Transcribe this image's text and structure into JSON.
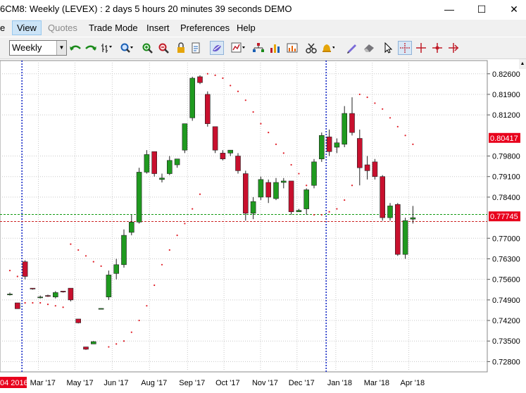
{
  "window": {
    "title": "6CM8: Weekly (LEVEX) : 2 days 5 hours 20 minutes 39 seconds DEMO",
    "minimize": "—",
    "maximize": "☐",
    "close": "✕"
  },
  "menu": {
    "items": [
      {
        "label": "e",
        "state": "normal"
      },
      {
        "label": "View",
        "state": "active"
      },
      {
        "label": "Quotes",
        "state": "disabled"
      },
      {
        "label": "Trade Mode",
        "state": "normal"
      },
      {
        "label": "Insert",
        "state": "normal"
      },
      {
        "label": "Preferences",
        "state": "normal"
      },
      {
        "label": "Help",
        "state": "normal"
      }
    ]
  },
  "toolbar": {
    "timeframe": "Weekly",
    "icons": [
      "undo-icon",
      "redo-icon",
      "bar-style-icon",
      "zoom-icon",
      "zoom-in-icon",
      "zoom-out-icon",
      "lock-icon",
      "page-icon",
      "draw-mode-icon",
      "indicator-icon",
      "tree-icon",
      "bars-icon",
      "scissors-icon",
      "bell-icon",
      "pencil-icon",
      "eraser-icon",
      "cursor-icon",
      "crosshair-icon",
      "crosshair-red-icon",
      "crosshair-dot-icon",
      "crosshair-arrow-icon"
    ]
  },
  "chart_data": {
    "type": "candlestick",
    "ylim": [
      0.7245,
      0.8305
    ],
    "yticks": [
      0.826,
      0.819,
      0.812,
      0.798,
      0.791,
      0.784,
      0.77,
      0.763,
      0.756,
      0.749,
      0.742,
      0.735,
      0.728
    ],
    "ytick_labels": [
      "0.82600",
      "0.81900",
      "0.81200",
      "0.79800",
      "0.79100",
      "0.78400",
      "0.77000",
      "0.76300",
      "0.75600",
      "0.74900",
      "0.74200",
      "0.73500",
      "0.72800"
    ],
    "price_tags": [
      {
        "label": "0.80417",
        "value": 0.80417,
        "color": "#e8001c"
      },
      {
        "label": "0.77745",
        "value": 0.77745,
        "color": "#e8001c"
      }
    ],
    "hlines": [
      {
        "value": 0.7781,
        "color": "#119911",
        "style": "dashed"
      },
      {
        "value": 0.7757,
        "color": "#cc2222",
        "style": "dashed"
      }
    ],
    "month_labels": [
      {
        "label": "04 2016",
        "idx": 0.3,
        "highlight": true
      },
      {
        "label": "Mar '17",
        "idx": 4.5
      },
      {
        "label": "May '17",
        "idx": 9.3
      },
      {
        "label": "Jun '17",
        "idx": 14.2
      },
      {
        "label": "Aug '17",
        "idx": 19.1
      },
      {
        "label": "Sep '17",
        "idx": 24.1
      },
      {
        "label": "Oct '17",
        "idx": 28.9
      },
      {
        "label": "Nov '17",
        "idx": 33.7
      },
      {
        "label": "Dec '17",
        "idx": 38.5
      },
      {
        "label": "Jan '18",
        "idx": 43.6
      },
      {
        "label": "Mar '18",
        "idx": 48.4
      },
      {
        "label": "Apr '18",
        "idx": 53.2
      }
    ],
    "vlines_blue": [
      1.5,
      41.5
    ],
    "candles": [
      {
        "o": 0.751,
        "h": 0.7515,
        "l": 0.7505,
        "c": 0.751
      },
      {
        "o": 0.748,
        "h": 0.748,
        "l": 0.746,
        "c": 0.746
      },
      {
        "o": 0.762,
        "h": 0.7625,
        "l": 0.756,
        "c": 0.757
      },
      {
        "o": 0.753,
        "h": 0.753,
        "l": 0.7525,
        "c": 0.7528
      },
      {
        "o": 0.75,
        "h": 0.7505,
        "l": 0.7495,
        "c": 0.75
      },
      {
        "o": 0.7505,
        "h": 0.7508,
        "l": 0.75,
        "c": 0.7503
      },
      {
        "o": 0.75,
        "h": 0.752,
        "l": 0.7495,
        "c": 0.7515
      },
      {
        "o": 0.752,
        "h": 0.752,
        "l": 0.7515,
        "c": 0.7518
      },
      {
        "o": 0.753,
        "h": 0.753,
        "l": 0.7485,
        "c": 0.749
      },
      {
        "o": 0.7425,
        "h": 0.7425,
        "l": 0.741,
        "c": 0.7412
      },
      {
        "o": 0.733,
        "h": 0.733,
        "l": 0.732,
        "c": 0.7322
      },
      {
        "o": 0.734,
        "h": 0.735,
        "l": 0.734,
        "c": 0.7348
      },
      {
        "o": 0.746,
        "h": 0.7462,
        "l": 0.7458,
        "c": 0.7461
      },
      {
        "o": 0.75,
        "h": 0.759,
        "l": 0.749,
        "c": 0.7575
      },
      {
        "o": 0.758,
        "h": 0.763,
        "l": 0.756,
        "c": 0.761
      },
      {
        "o": 0.761,
        "h": 0.773,
        "l": 0.76,
        "c": 0.771
      },
      {
        "o": 0.772,
        "h": 0.778,
        "l": 0.771,
        "c": 0.7755
      },
      {
        "o": 0.7755,
        "h": 0.794,
        "l": 0.775,
        "c": 0.7925
      },
      {
        "o": 0.7925,
        "h": 0.8,
        "l": 0.792,
        "c": 0.7985
      },
      {
        "o": 0.7995,
        "h": 0.7995,
        "l": 0.791,
        "c": 0.792
      },
      {
        "o": 0.79,
        "h": 0.792,
        "l": 0.789,
        "c": 0.7905
      },
      {
        "o": 0.792,
        "h": 0.798,
        "l": 0.7915,
        "c": 0.7965
      },
      {
        "o": 0.795,
        "h": 0.797,
        "l": 0.794,
        "c": 0.797
      },
      {
        "o": 0.8,
        "h": 0.809,
        "l": 0.799,
        "c": 0.809
      },
      {
        "o": 0.811,
        "h": 0.825,
        "l": 0.81,
        "c": 0.8245
      },
      {
        "o": 0.825,
        "h": 0.8255,
        "l": 0.8225,
        "c": 0.823
      },
      {
        "o": 0.819,
        "h": 0.82,
        "l": 0.808,
        "c": 0.809
      },
      {
        "o": 0.808,
        "h": 0.808,
        "l": 0.799,
        "c": 0.8
      },
      {
        "o": 0.799,
        "h": 0.8,
        "l": 0.7965,
        "c": 0.797
      },
      {
        "o": 0.799,
        "h": 0.8,
        "l": 0.798,
        "c": 0.8
      },
      {
        "o": 0.798,
        "h": 0.799,
        "l": 0.792,
        "c": 0.793
      },
      {
        "o": 0.792,
        "h": 0.793,
        "l": 0.776,
        "c": 0.7785
      },
      {
        "o": 0.7785,
        "h": 0.784,
        "l": 0.7765,
        "c": 0.7825
      },
      {
        "o": 0.784,
        "h": 0.791,
        "l": 0.783,
        "c": 0.79
      },
      {
        "o": 0.789,
        "h": 0.79,
        "l": 0.782,
        "c": 0.784
      },
      {
        "o": 0.7835,
        "h": 0.7905,
        "l": 0.783,
        "c": 0.789
      },
      {
        "o": 0.789,
        "h": 0.7905,
        "l": 0.787,
        "c": 0.7895
      },
      {
        "o": 0.7895,
        "h": 0.7895,
        "l": 0.778,
        "c": 0.779
      },
      {
        "o": 0.779,
        "h": 0.78,
        "l": 0.779,
        "c": 0.7795
      },
      {
        "o": 0.78,
        "h": 0.787,
        "l": 0.778,
        "c": 0.7865
      },
      {
        "o": 0.788,
        "h": 0.797,
        "l": 0.787,
        "c": 0.796
      },
      {
        "o": 0.797,
        "h": 0.806,
        "l": 0.796,
        "c": 0.805
      },
      {
        "o": 0.8045,
        "h": 0.807,
        "l": 0.798,
        "c": 0.7995
      },
      {
        "o": 0.801,
        "h": 0.804,
        "l": 0.799,
        "c": 0.8025
      },
      {
        "o": 0.802,
        "h": 0.815,
        "l": 0.801,
        "c": 0.8125
      },
      {
        "o": 0.8125,
        "h": 0.818,
        "l": 0.805,
        "c": 0.806
      },
      {
        "o": 0.804,
        "h": 0.807,
        "l": 0.788,
        "c": 0.794
      },
      {
        "o": 0.795,
        "h": 0.798,
        "l": 0.79,
        "c": 0.793
      },
      {
        "o": 0.796,
        "h": 0.797,
        "l": 0.79,
        "c": 0.791
      },
      {
        "o": 0.791,
        "h": 0.7915,
        "l": 0.776,
        "c": 0.777
      },
      {
        "o": 0.777,
        "h": 0.782,
        "l": 0.776,
        "c": 0.781
      },
      {
        "o": 0.7815,
        "h": 0.782,
        "l": 0.764,
        "c": 0.7645
      },
      {
        "o": 0.7645,
        "h": 0.777,
        "l": 0.763,
        "c": 0.776
      },
      {
        "o": 0.7765,
        "h": 0.781,
        "l": 0.775,
        "c": 0.777
      }
    ],
    "sar_points": [
      [
        0,
        0.759
      ],
      [
        1,
        0.757
      ],
      [
        2,
        0.748
      ],
      [
        3,
        0.748
      ],
      [
        4,
        0.748
      ],
      [
        5,
        0.7475
      ],
      [
        6,
        0.747
      ],
      [
        7,
        0.7465
      ],
      [
        8,
        0.768
      ],
      [
        9,
        0.766
      ],
      [
        10,
        0.764
      ],
      [
        11,
        0.762
      ],
      [
        12,
        0.7605
      ],
      [
        13,
        0.733
      ],
      [
        14,
        0.734
      ],
      [
        15,
        0.735
      ],
      [
        16,
        0.738
      ],
      [
        17,
        0.742
      ],
      [
        18,
        0.747
      ],
      [
        19,
        0.754
      ],
      [
        20,
        0.761
      ],
      [
        21,
        0.766
      ],
      [
        22,
        0.771
      ],
      [
        23,
        0.775
      ],
      [
        24,
        0.78
      ],
      [
        25,
        0.785
      ],
      [
        26,
        0.826
      ],
      [
        27,
        0.8255
      ],
      [
        28,
        0.8245
      ],
      [
        29,
        0.822
      ],
      [
        30,
        0.82
      ],
      [
        31,
        0.817
      ],
      [
        32,
        0.813
      ],
      [
        33,
        0.809
      ],
      [
        34,
        0.806
      ],
      [
        35,
        0.802
      ],
      [
        36,
        0.799
      ],
      [
        37,
        0.795
      ],
      [
        38,
        0.792
      ],
      [
        39,
        0.788
      ],
      [
        40,
        0.778
      ],
      [
        41,
        0.778
      ],
      [
        42,
        0.779
      ],
      [
        43,
        0.78
      ],
      [
        44,
        0.783
      ],
      [
        45,
        0.788
      ],
      [
        46,
        0.819
      ],
      [
        47,
        0.818
      ],
      [
        48,
        0.816
      ],
      [
        49,
        0.814
      ],
      [
        50,
        0.811
      ],
      [
        51,
        0.808
      ],
      [
        52,
        0.805
      ],
      [
        53,
        0.802
      ]
    ]
  }
}
